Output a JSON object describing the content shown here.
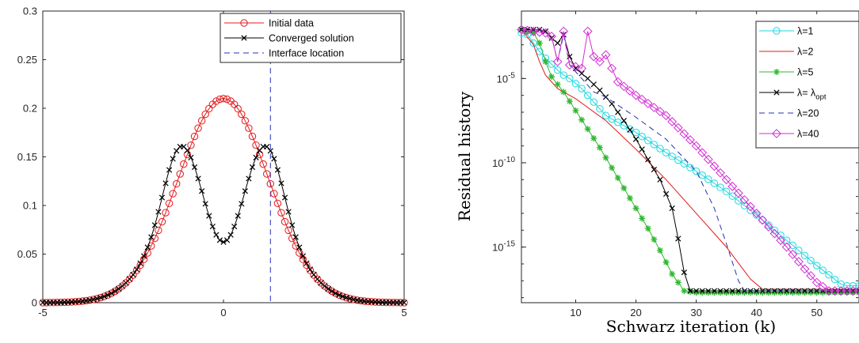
{
  "chart_data": [
    {
      "type": "line",
      "title": "",
      "xlabel": "",
      "ylabel": "",
      "xlim": [
        -5,
        5
      ],
      "ylim": [
        0,
        0.3
      ],
      "xticks": [
        "-5",
        "0",
        "5"
      ],
      "yticks": [
        "0",
        "0.05",
        "0.1",
        "0.15",
        "0.2",
        "0.25",
        "0.3"
      ],
      "grid": false,
      "legend_position": "top-right",
      "interface_x": 1.3,
      "series": [
        {
          "name": "Initial data",
          "color": "#e41a1c",
          "marker": "circle",
          "model": "gaussian",
          "params": {
            "amplitude": 0.21,
            "width": 1.25
          }
        },
        {
          "name": "Converged solution",
          "color": "#000000",
          "marker": "x",
          "model": "double-bump",
          "params": {
            "base_amplitude": 0.21,
            "base_width": 1.25,
            "dip": 0.148,
            "dip_width": 0.55,
            "bump": 0.043,
            "bump_center": 1.3,
            "bump_width": 0.4
          }
        },
        {
          "name": "Interface location",
          "color": "#2630b8",
          "style": "dashed",
          "model": "vertical-line"
        }
      ]
    },
    {
      "type": "line",
      "title": "",
      "xlabel": "Schwarz iteration (k)",
      "ylabel": "Residual history",
      "xlim": [
        1,
        57
      ],
      "ylim_log10": [
        -18.3,
        -1
      ],
      "yscale": "log",
      "xticks": [
        "10",
        "20",
        "30",
        "40",
        "50"
      ],
      "yticks": [
        "10-5",
        "10-10",
        "10-15"
      ],
      "grid": false,
      "legend_position": "top-right",
      "series": [
        {
          "name": "λ=1",
          "color": "#1fd7e0",
          "marker": "circle",
          "points": [
            [
              1,
              -2.3
            ],
            [
              2,
              -2.4
            ],
            [
              3,
              -2.9
            ],
            [
              4,
              -3.4
            ],
            [
              5,
              -3.8
            ],
            [
              6,
              -4.15
            ],
            [
              7,
              -4.5
            ],
            [
              8,
              -4.8
            ],
            [
              9,
              -5.0
            ],
            [
              10,
              -5.3
            ],
            [
              11,
              -5.6
            ],
            [
              12,
              -6.0
            ],
            [
              13,
              -6.4
            ],
            [
              14,
              -6.8
            ],
            [
              15,
              -7.2
            ],
            [
              20,
              -8.2
            ],
            [
              25,
              -9.4
            ],
            [
              30,
              -10.5
            ],
            [
              35,
              -11.7
            ],
            [
              40,
              -13.1
            ],
            [
              45,
              -14.6
            ],
            [
              50,
              -16.1
            ],
            [
              54,
              -17.2
            ],
            [
              55,
              -17.3
            ],
            [
              56,
              -17.3
            ],
            [
              57,
              -17.3
            ]
          ]
        },
        {
          "name": "λ=2",
          "color": "#e41a1c",
          "marker": "none",
          "points": [
            [
              1,
              -2.1
            ],
            [
              3,
              -3.0
            ],
            [
              4,
              -4.0
            ],
            [
              5,
              -4.8
            ],
            [
              7,
              -5.6
            ],
            [
              10,
              -6.2
            ],
            [
              15,
              -7.5
            ],
            [
              20,
              -9.2
            ],
            [
              25,
              -11.0
            ],
            [
              30,
              -13.0
            ],
            [
              35,
              -15.0
            ],
            [
              39,
              -16.9
            ],
            [
              41,
              -17.5
            ],
            [
              45,
              -17.5
            ],
            [
              57,
              -17.5
            ]
          ]
        },
        {
          "name": "λ=5",
          "color": "#2eb82e",
          "marker": "asterisk",
          "points": [
            [
              1,
              -2.1
            ],
            [
              3,
              -2.3
            ],
            [
              4,
              -2.9
            ],
            [
              5,
              -4.0
            ],
            [
              6,
              -4.9
            ],
            [
              8,
              -5.8
            ],
            [
              10,
              -6.9
            ],
            [
              12,
              -8.0
            ],
            [
              14,
              -9.1
            ],
            [
              16,
              -10.3
            ],
            [
              18,
              -11.5
            ],
            [
              20,
              -12.7
            ],
            [
              22,
              -13.9
            ],
            [
              24,
              -15.2
            ],
            [
              26,
              -16.6
            ],
            [
              28,
              -17.6
            ],
            [
              30,
              -17.7
            ],
            [
              40,
              -17.7
            ],
            [
              57,
              -17.7
            ]
          ]
        },
        {
          "name": "λ= λopt",
          "name_main": "λ= λ",
          "name_sub": "opt",
          "color": "#000000",
          "marker": "x",
          "points": [
            [
              1,
              -2.1
            ],
            [
              2,
              -2.1
            ],
            [
              3,
              -2.1
            ],
            [
              4,
              -2.1
            ],
            [
              5,
              -2.2
            ],
            [
              6,
              -2.6
            ],
            [
              7,
              -2.9
            ],
            [
              8,
              -2.4
            ],
            [
              9,
              -3.7
            ],
            [
              10,
              -4.4
            ],
            [
              12,
              -5.0
            ],
            [
              14,
              -5.7
            ],
            [
              16,
              -6.5
            ],
            [
              18,
              -7.5
            ],
            [
              20,
              -8.6
            ],
            [
              22,
              -9.8
            ],
            [
              24,
              -11.0
            ],
            [
              26,
              -12.7
            ],
            [
              27,
              -14.5
            ],
            [
              28,
              -16.5
            ],
            [
              29,
              -17.6
            ],
            [
              30,
              -17.6
            ],
            [
              35,
              -17.6
            ],
            [
              45,
              -17.6
            ],
            [
              57,
              -17.6
            ]
          ]
        },
        {
          "name": "λ=20",
          "color": "#2630b8",
          "style": "dashed",
          "marker": "none",
          "points": [
            [
              1,
              -2.1
            ],
            [
              4,
              -2.1
            ],
            [
              6,
              -2.5
            ],
            [
              7,
              -4.0
            ],
            [
              8,
              -2.4
            ],
            [
              9,
              -4.2
            ],
            [
              11,
              -5.0
            ],
            [
              13,
              -5.8
            ],
            [
              15,
              -6.1
            ],
            [
              20,
              -7.3
            ],
            [
              25,
              -8.6
            ],
            [
              30,
              -10.5
            ],
            [
              33,
              -12.7
            ],
            [
              35,
              -14.8
            ],
            [
              37,
              -17.0
            ],
            [
              38,
              -17.6
            ],
            [
              45,
              -17.6
            ],
            [
              57,
              -17.6
            ]
          ]
        },
        {
          "name": "λ=40",
          "color": "#d42ad4",
          "marker": "diamond",
          "points": [
            [
              1,
              -2.1
            ],
            [
              3,
              -2.2
            ],
            [
              5,
              -2.3
            ],
            [
              6,
              -2.5
            ],
            [
              7,
              -4.0
            ],
            [
              8,
              -2.2
            ],
            [
              9,
              -4.2
            ],
            [
              11,
              -4.4
            ],
            [
              12,
              -2.2
            ],
            [
              13,
              -3.7
            ],
            [
              14,
              -4.0
            ],
            [
              15,
              -3.6
            ],
            [
              17,
              -5.2
            ],
            [
              20,
              -6.0
            ],
            [
              25,
              -7.2
            ],
            [
              30,
              -9.0
            ],
            [
              35,
              -11.0
            ],
            [
              40,
              -13.0
            ],
            [
              45,
              -15.0
            ],
            [
              48,
              -16.3
            ],
            [
              50,
              -17.1
            ],
            [
              52,
              -17.6
            ],
            [
              57,
              -17.6
            ]
          ]
        }
      ]
    }
  ]
}
